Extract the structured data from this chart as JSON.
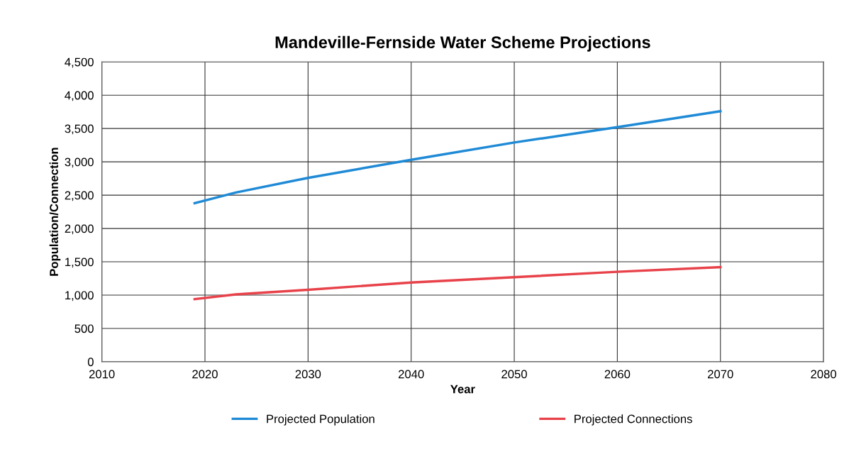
{
  "chart_data": {
    "type": "line",
    "title": "Mandeville-Fernside Water Scheme Projections",
    "xlabel": "Year",
    "ylabel": "Population/Connection",
    "x": [
      2019,
      2023,
      2030,
      2040,
      2050,
      2060,
      2070
    ],
    "series": [
      {
        "name": "Projected Population",
        "color": "#1f8ad6",
        "values": [
          2380,
          2540,
          2760,
          3030,
          3290,
          3520,
          3760
        ]
      },
      {
        "name": "Projected Connections",
        "color": "#e8424a",
        "values": [
          940,
          1010,
          1080,
          1190,
          1270,
          1350,
          1420
        ]
      }
    ],
    "xlim": [
      2010,
      2080
    ],
    "xticks": [
      2010,
      2020,
      2030,
      2040,
      2050,
      2060,
      2070,
      2080
    ],
    "ylim": [
      0,
      4500
    ],
    "yticks": [
      {
        "value": 0,
        "label": "0"
      },
      {
        "value": 500,
        "label": "500"
      },
      {
        "value": 1000,
        "label": "1,000"
      },
      {
        "value": 1500,
        "label": "1,500"
      },
      {
        "value": 2000,
        "label": "2,000"
      },
      {
        "value": 2500,
        "label": "2,500"
      },
      {
        "value": 3000,
        "label": "3,000"
      },
      {
        "value": 3500,
        "label": "3,500"
      },
      {
        "value": 4000,
        "label": "4,000"
      },
      {
        "value": 4500,
        "label": "4,500"
      }
    ],
    "grid": true,
    "legend": "bottom",
    "marker": "none",
    "line_style": "solid"
  }
}
